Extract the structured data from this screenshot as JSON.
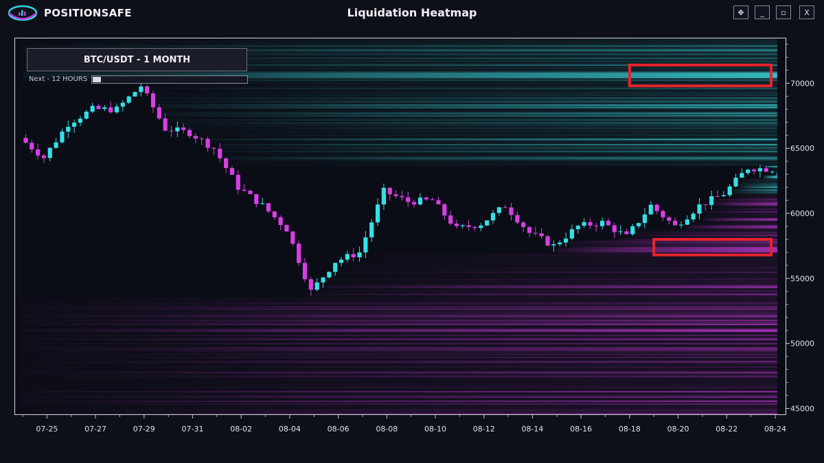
{
  "app": {
    "brand": "POSITIONSAFE",
    "window_title": "Liquidation Heatmap"
  },
  "window_buttons": [
    "✥",
    "_",
    "▫",
    "X"
  ],
  "panel": {
    "pair_label": "BTC/USDT - 1 MONTH",
    "next_label": "Next - 12 HOURS",
    "progress": 0.05
  },
  "colors": {
    "background": "#0b0d16",
    "cyan": "#3fe6ea",
    "magenta": "#c43ad8",
    "highlight": "#e8232d"
  },
  "chart_data": {
    "type": "heatmap",
    "title": "Liquidation Heatmap",
    "instrument": "BTC/USDT",
    "x_labels": [
      "07-25",
      "07-27",
      "07-29",
      "07-31",
      "08-02",
      "08-04",
      "08-06",
      "08-08",
      "08-10",
      "08-12",
      "08-14",
      "08-16",
      "08-18",
      "08-20",
      "08-22",
      "08-24"
    ],
    "x_range": [
      "07-24",
      "08-24"
    ],
    "y_ticks": [
      45000,
      50000,
      55000,
      60000,
      65000,
      70000
    ],
    "y_range": [
      44500,
      73500
    ],
    "price_series": {
      "name": "BTC/USDT",
      "x": [
        "07-24",
        "07-25",
        "07-26",
        "07-27",
        "07-28",
        "07-29",
        "07-30",
        "07-31",
        "08-01",
        "08-02",
        "08-03",
        "08-04",
        "08-05",
        "08-06",
        "08-07",
        "08-08",
        "08-09",
        "08-10",
        "08-11",
        "08-12",
        "08-13",
        "08-14",
        "08-15",
        "08-16",
        "08-17",
        "08-18",
        "08-19",
        "08-20",
        "08-21",
        "08-22",
        "08-23",
        "08-24"
      ],
      "close": [
        65800,
        64300,
        66900,
        68000,
        68000,
        69800,
        66500,
        66200,
        65000,
        62000,
        60600,
        58800,
        54000,
        56300,
        57000,
        61700,
        60900,
        61000,
        58800,
        59200,
        60600,
        58500,
        57500,
        59000,
        59300,
        58200,
        60600,
        59000,
        60600,
        61500,
        63500,
        63400
      ]
    },
    "liquidation_bands": {
      "short_side_color": "cyan",
      "long_side_color": "magenta",
      "notable_levels": [
        {
          "price": 70700,
          "side": "short"
        },
        {
          "price": 63000,
          "side": "short"
        },
        {
          "price": 57300,
          "side": "long"
        }
      ]
    },
    "highlight_boxes": [
      {
        "price_low": 69800,
        "price_high": 71400,
        "date_start": "08-18",
        "date_end": "08-24",
        "color": "red"
      },
      {
        "price_low": 56800,
        "price_high": 58000,
        "date_start": "08-19",
        "date_end": "08-24",
        "color": "red"
      }
    ]
  }
}
